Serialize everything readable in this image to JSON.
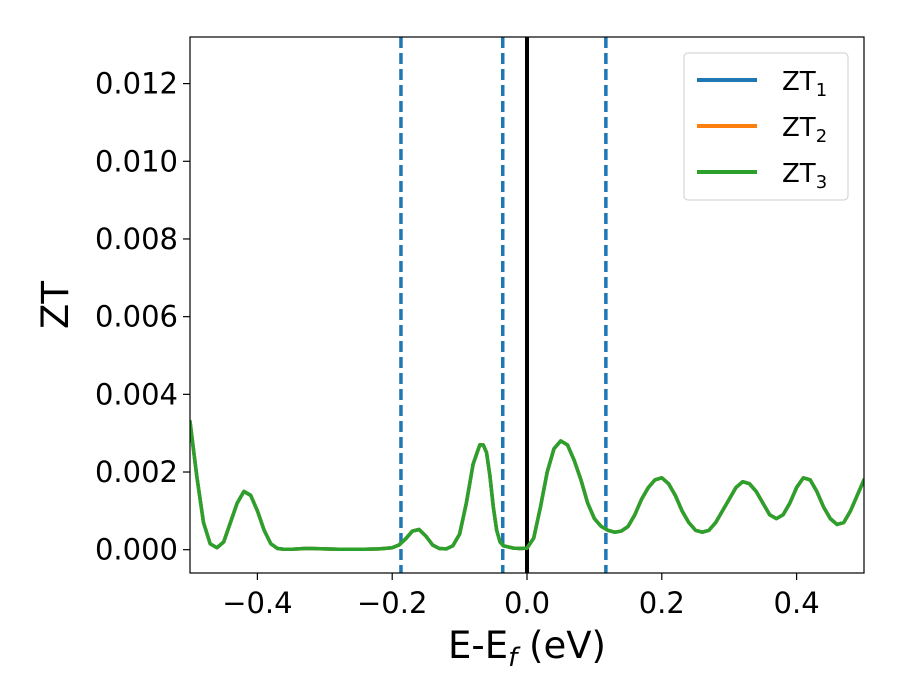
{
  "chart_data": {
    "type": "line",
    "title": "",
    "xlabel": "E-E",
    "xlabel_sub": "f",
    "xlabel_unit": " (eV)",
    "ylabel": "ZT",
    "xlim": [
      -0.5,
      0.5
    ],
    "ylim": [
      -0.0006,
      0.0132
    ],
    "xticks": [
      -0.4,
      -0.2,
      0.0,
      0.2,
      0.4
    ],
    "xtick_labels": [
      "−0.4",
      "−0.2",
      "0.0",
      "0.2",
      "0.4"
    ],
    "yticks": [
      0.0,
      0.002,
      0.004,
      0.006,
      0.008,
      0.01,
      0.012
    ],
    "ytick_labels": [
      "0.000",
      "0.002",
      "0.004",
      "0.006",
      "0.008",
      "0.010",
      "0.012"
    ],
    "grid": false,
    "legend_position": "top-right",
    "vlines": [
      {
        "x": -0.187,
        "style": "dashed",
        "color": "#1f77b4"
      },
      {
        "x": -0.036,
        "style": "dashed",
        "color": "#1f77b4"
      },
      {
        "x": 0.0,
        "style": "solid",
        "color": "#000000"
      },
      {
        "x": 0.117,
        "style": "dashed",
        "color": "#1f77b4"
      }
    ],
    "series": [
      {
        "name": "ZT",
        "name_sub": "1",
        "color": "#1f77b4",
        "x": [
          -0.5,
          -0.49,
          -0.48,
          -0.47,
          -0.46,
          -0.45,
          -0.44,
          -0.43,
          -0.42,
          -0.41,
          -0.4,
          -0.39,
          -0.38,
          -0.37,
          -0.36,
          -0.35,
          -0.34,
          -0.33,
          -0.32,
          -0.3,
          -0.28,
          -0.26,
          -0.24,
          -0.22,
          -0.2,
          -0.19,
          -0.18,
          -0.17,
          -0.16,
          -0.15,
          -0.14,
          -0.13,
          -0.12,
          -0.11,
          -0.1,
          -0.09,
          -0.08,
          -0.07,
          -0.065,
          -0.06,
          -0.055,
          -0.05,
          -0.045,
          -0.04,
          -0.035,
          -0.03,
          -0.02,
          -0.01,
          0.0,
          0.01,
          0.02,
          0.03,
          0.04,
          0.05,
          0.06,
          0.07,
          0.08,
          0.09,
          0.1,
          0.11,
          0.12,
          0.13,
          0.14,
          0.15,
          0.16,
          0.17,
          0.18,
          0.19,
          0.2,
          0.21,
          0.22,
          0.23,
          0.24,
          0.25,
          0.26,
          0.27,
          0.28,
          0.29,
          0.3,
          0.31,
          0.32,
          0.33,
          0.34,
          0.35,
          0.36,
          0.37,
          0.38,
          0.39,
          0.4,
          0.41,
          0.42,
          0.43,
          0.44,
          0.45,
          0.46,
          0.47,
          0.48,
          0.49,
          0.5
        ],
        "values": [
          0.0033,
          0.0019,
          0.0007,
          0.00015,
          5e-05,
          0.0002,
          0.0007,
          0.0012,
          0.0015,
          0.0014,
          0.001,
          0.0005,
          0.00015,
          3e-05,
          1e-05,
          1e-05,
          2e-05,
          3e-05,
          3e-05,
          2e-05,
          1e-05,
          1e-05,
          1e-05,
          2e-05,
          5e-05,
          0.00012,
          0.00028,
          0.00048,
          0.00052,
          0.00035,
          0.00012,
          3e-05,
          2e-05,
          0.0001,
          0.0004,
          0.0012,
          0.0022,
          0.0027,
          0.0027,
          0.0025,
          0.0019,
          0.0011,
          0.0005,
          0.0002,
          0.0001,
          8e-05,
          4e-05,
          3e-05,
          4e-05,
          0.0003,
          0.0011,
          0.002,
          0.0026,
          0.0028,
          0.0027,
          0.0023,
          0.0018,
          0.0012,
          0.0008,
          0.0006,
          0.0005,
          0.00045,
          0.00048,
          0.0006,
          0.0009,
          0.0013,
          0.0016,
          0.0018,
          0.00185,
          0.0017,
          0.0014,
          0.001,
          0.0007,
          0.0005,
          0.00045,
          0.0005,
          0.0007,
          0.001,
          0.0013,
          0.0016,
          0.00175,
          0.0017,
          0.0015,
          0.0012,
          0.0009,
          0.0008,
          0.0009,
          0.0012,
          0.0016,
          0.00185,
          0.0018,
          0.0015,
          0.0011,
          0.0008,
          0.00065,
          0.0007,
          0.001,
          0.0014,
          0.0018
        ]
      },
      {
        "name": "ZT",
        "name_sub": "2",
        "color": "#ff7f0e",
        "x": [
          -0.5,
          -0.49,
          -0.48,
          -0.47,
          -0.46,
          -0.45,
          -0.44,
          -0.43,
          -0.42,
          -0.41,
          -0.4,
          -0.39,
          -0.38,
          -0.37,
          -0.36,
          -0.35,
          -0.34,
          -0.33,
          -0.32,
          -0.3,
          -0.28,
          -0.26,
          -0.24,
          -0.22,
          -0.2,
          -0.19,
          -0.18,
          -0.17,
          -0.16,
          -0.15,
          -0.14,
          -0.13,
          -0.12,
          -0.11,
          -0.1,
          -0.09,
          -0.08,
          -0.07,
          -0.065,
          -0.06,
          -0.055,
          -0.05,
          -0.045,
          -0.04,
          -0.035,
          -0.03,
          -0.02,
          -0.01,
          0.0,
          0.01,
          0.02,
          0.03,
          0.04,
          0.05,
          0.06,
          0.07,
          0.08,
          0.09,
          0.1,
          0.11,
          0.12,
          0.13,
          0.14,
          0.15,
          0.16,
          0.17,
          0.18,
          0.19,
          0.2,
          0.21,
          0.22,
          0.23,
          0.24,
          0.25,
          0.26,
          0.27,
          0.28,
          0.29,
          0.3,
          0.31,
          0.32,
          0.33,
          0.34,
          0.35,
          0.36,
          0.37,
          0.38,
          0.39,
          0.4,
          0.41,
          0.42,
          0.43,
          0.44,
          0.45,
          0.46,
          0.47,
          0.48,
          0.49,
          0.5
        ],
        "values": [
          0.0033,
          0.0019,
          0.0007,
          0.00015,
          5e-05,
          0.0002,
          0.0007,
          0.0012,
          0.0015,
          0.0014,
          0.001,
          0.0005,
          0.00015,
          3e-05,
          1e-05,
          1e-05,
          2e-05,
          3e-05,
          3e-05,
          2e-05,
          1e-05,
          1e-05,
          1e-05,
          2e-05,
          5e-05,
          0.00012,
          0.00028,
          0.00048,
          0.00052,
          0.00035,
          0.00012,
          3e-05,
          2e-05,
          0.0001,
          0.0004,
          0.0012,
          0.0022,
          0.0027,
          0.0027,
          0.0025,
          0.0019,
          0.0011,
          0.0005,
          0.0002,
          0.0001,
          8e-05,
          4e-05,
          3e-05,
          4e-05,
          0.0003,
          0.0011,
          0.002,
          0.0026,
          0.0028,
          0.0027,
          0.0023,
          0.0018,
          0.0012,
          0.0008,
          0.0006,
          0.0005,
          0.00045,
          0.00048,
          0.0006,
          0.0009,
          0.0013,
          0.0016,
          0.0018,
          0.00185,
          0.0017,
          0.0014,
          0.001,
          0.0007,
          0.0005,
          0.00045,
          0.0005,
          0.0007,
          0.001,
          0.0013,
          0.0016,
          0.00175,
          0.0017,
          0.0015,
          0.0012,
          0.0009,
          0.0008,
          0.0009,
          0.0012,
          0.0016,
          0.00185,
          0.0018,
          0.0015,
          0.0011,
          0.0008,
          0.00065,
          0.0007,
          0.001,
          0.0014,
          0.0018
        ]
      },
      {
        "name": "ZT",
        "name_sub": "3",
        "color": "#2ca02c",
        "x": [
          -0.5,
          -0.49,
          -0.48,
          -0.47,
          -0.46,
          -0.45,
          -0.44,
          -0.43,
          -0.42,
          -0.41,
          -0.4,
          -0.39,
          -0.38,
          -0.37,
          -0.36,
          -0.35,
          -0.34,
          -0.33,
          -0.32,
          -0.3,
          -0.28,
          -0.26,
          -0.24,
          -0.22,
          -0.2,
          -0.19,
          -0.18,
          -0.17,
          -0.16,
          -0.15,
          -0.14,
          -0.13,
          -0.12,
          -0.11,
          -0.1,
          -0.09,
          -0.08,
          -0.07,
          -0.065,
          -0.06,
          -0.055,
          -0.05,
          -0.045,
          -0.04,
          -0.035,
          -0.03,
          -0.02,
          -0.01,
          0.0,
          0.01,
          0.02,
          0.03,
          0.04,
          0.05,
          0.06,
          0.07,
          0.08,
          0.09,
          0.1,
          0.11,
          0.12,
          0.13,
          0.14,
          0.15,
          0.16,
          0.17,
          0.18,
          0.19,
          0.2,
          0.21,
          0.22,
          0.23,
          0.24,
          0.25,
          0.26,
          0.27,
          0.28,
          0.29,
          0.3,
          0.31,
          0.32,
          0.33,
          0.34,
          0.35,
          0.36,
          0.37,
          0.38,
          0.39,
          0.4,
          0.41,
          0.42,
          0.43,
          0.44,
          0.45,
          0.46,
          0.47,
          0.48,
          0.49,
          0.5
        ],
        "values": [
          0.0033,
          0.0019,
          0.0007,
          0.00015,
          5e-05,
          0.0002,
          0.0007,
          0.0012,
          0.0015,
          0.0014,
          0.001,
          0.0005,
          0.00015,
          3e-05,
          1e-05,
          1e-05,
          2e-05,
          3e-05,
          3e-05,
          2e-05,
          1e-05,
          1e-05,
          1e-05,
          2e-05,
          5e-05,
          0.00012,
          0.00028,
          0.00048,
          0.00052,
          0.00035,
          0.00012,
          3e-05,
          2e-05,
          0.0001,
          0.0004,
          0.0012,
          0.0022,
          0.0027,
          0.0027,
          0.0025,
          0.0019,
          0.0011,
          0.0005,
          0.0002,
          0.0001,
          8e-05,
          4e-05,
          3e-05,
          4e-05,
          0.0003,
          0.0011,
          0.002,
          0.0026,
          0.0028,
          0.0027,
          0.0023,
          0.0018,
          0.0012,
          0.0008,
          0.0006,
          0.0005,
          0.00045,
          0.00048,
          0.0006,
          0.0009,
          0.0013,
          0.0016,
          0.0018,
          0.00185,
          0.0017,
          0.0014,
          0.001,
          0.0007,
          0.0005,
          0.00045,
          0.0005,
          0.0007,
          0.001,
          0.0013,
          0.0016,
          0.00175,
          0.0017,
          0.0015,
          0.0012,
          0.0009,
          0.0008,
          0.0009,
          0.0012,
          0.0016,
          0.00185,
          0.0018,
          0.0015,
          0.0011,
          0.0008,
          0.00065,
          0.0007,
          0.001,
          0.0014,
          0.0018
        ]
      }
    ]
  }
}
